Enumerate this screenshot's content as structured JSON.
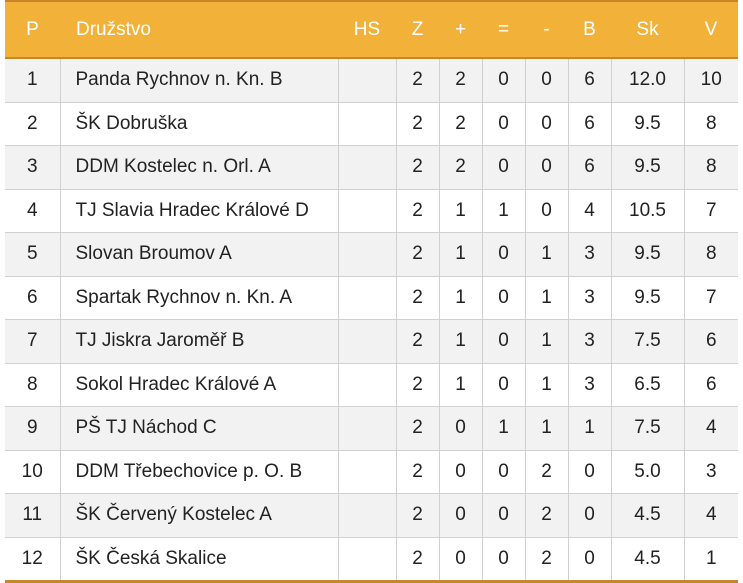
{
  "headers": [
    "P",
    "Družstvo",
    "HS",
    "Z",
    "+",
    "=",
    "-",
    "B",
    "Sk",
    "V"
  ],
  "rows": [
    [
      "1",
      "Panda Rychnov n. Kn. B",
      "",
      "2",
      "2",
      "0",
      "0",
      "6",
      "12.0",
      "10"
    ],
    [
      "2",
      "ŠK Dobruška",
      "",
      "2",
      "2",
      "0",
      "0",
      "6",
      "9.5",
      "8"
    ],
    [
      "3",
      "DDM Kostelec n. Orl. A",
      "",
      "2",
      "2",
      "0",
      "0",
      "6",
      "9.5",
      "8"
    ],
    [
      "4",
      "TJ Slavia Hradec Králové D",
      "",
      "2",
      "1",
      "1",
      "0",
      "4",
      "10.5",
      "7"
    ],
    [
      "5",
      "Slovan Broumov A",
      "",
      "2",
      "1",
      "0",
      "1",
      "3",
      "9.5",
      "8"
    ],
    [
      "6",
      "Spartak Rychnov n. Kn. A",
      "",
      "2",
      "1",
      "0",
      "1",
      "3",
      "9.5",
      "7"
    ],
    [
      "7",
      "TJ Jiskra Jaroměř B",
      "",
      "2",
      "1",
      "0",
      "1",
      "3",
      "7.5",
      "6"
    ],
    [
      "8",
      "Sokol Hradec Králové A",
      "",
      "2",
      "1",
      "0",
      "1",
      "3",
      "6.5",
      "6"
    ],
    [
      "9",
      "PŠ TJ Náchod C",
      "",
      "2",
      "0",
      "1",
      "1",
      "1",
      "7.5",
      "4"
    ],
    [
      "10",
      "DDM Třebechovice p. O. B",
      "",
      "2",
      "0",
      "0",
      "2",
      "0",
      "5.0",
      "3"
    ],
    [
      "11",
      "ŠK Červený Kostelec A",
      "",
      "2",
      "0",
      "0",
      "2",
      "0",
      "4.5",
      "4"
    ],
    [
      "12",
      "ŠK Česká Skalice",
      "",
      "2",
      "0",
      "0",
      "2",
      "0",
      "4.5",
      "1"
    ]
  ],
  "colors": {
    "header_bg": "#f2b23a",
    "header_border": "#c7862c",
    "row_alt": "#f2f2f2"
  }
}
